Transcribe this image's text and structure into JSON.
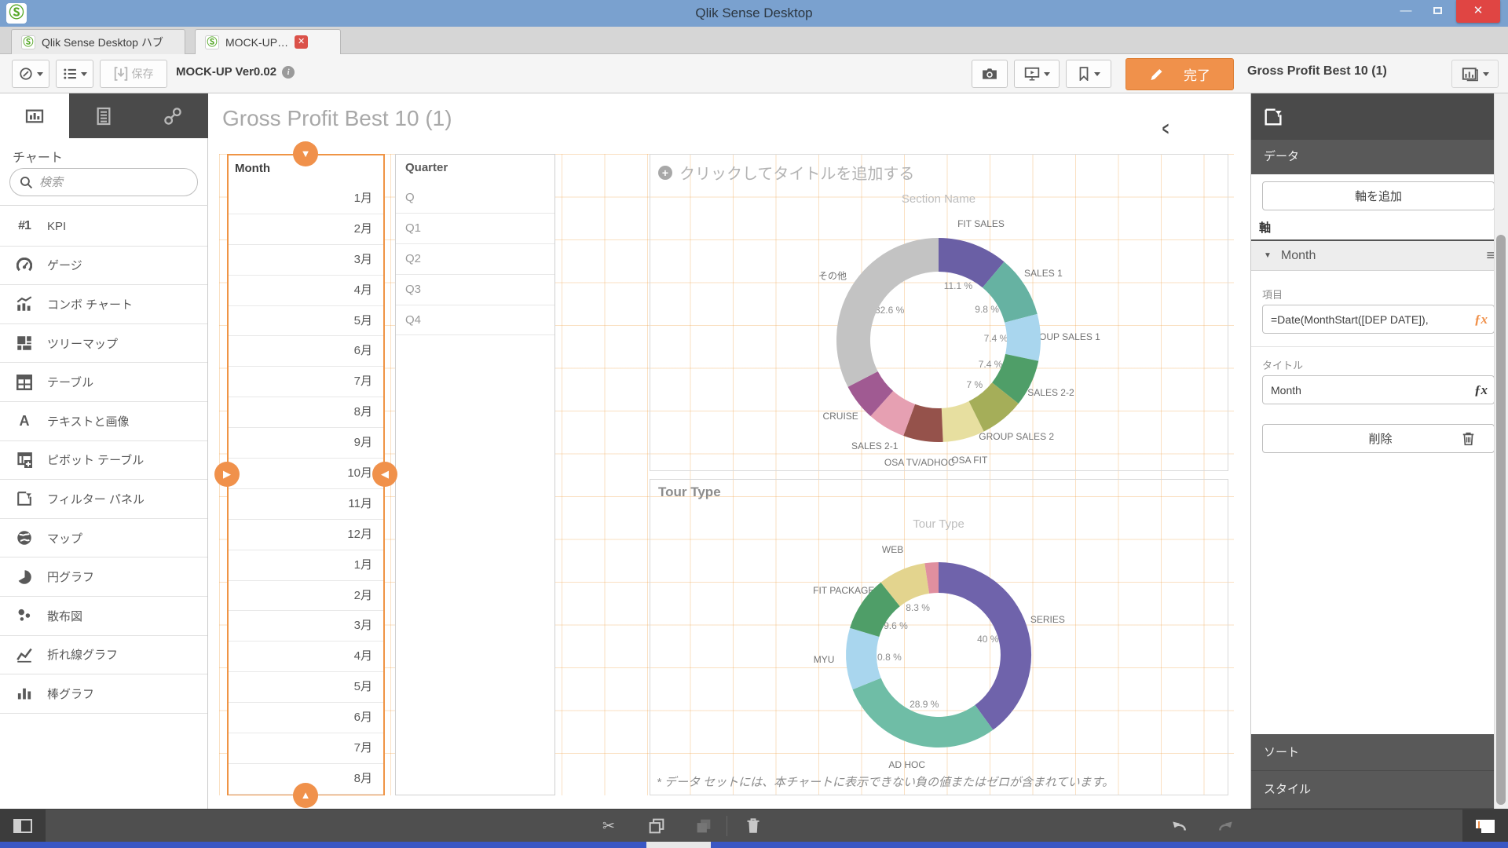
{
  "titlebar": {
    "title": "Qlik Sense Desktop"
  },
  "tabbar": {
    "tabs": [
      {
        "label": "Qlik Sense Desktop ハブ"
      },
      {
        "label": "MOCK-UP…"
      }
    ]
  },
  "toolbar": {
    "save_label": "保存",
    "app_version": "MOCK-UP Ver0.02",
    "info_glyph": "i",
    "done_label": "完了",
    "current_sheet": "Gross Profit Best 10 (1)"
  },
  "sidebar": {
    "heading": "チャート",
    "search_placeholder": "検索",
    "items": [
      {
        "icon": "kpi-icon",
        "label": "KPI"
      },
      {
        "icon": "gauge-icon",
        "label": "ゲージ"
      },
      {
        "icon": "combo-chart-icon",
        "label": "コンボ チャート"
      },
      {
        "icon": "treemap-icon",
        "label": "ツリーマップ"
      },
      {
        "icon": "table-icon",
        "label": "テーブル"
      },
      {
        "icon": "text-image-icon",
        "label": "テキストと画像"
      },
      {
        "icon": "pivot-table-icon",
        "label": "ピボット テーブル"
      },
      {
        "icon": "filter-pane-icon",
        "label": "フィルター パネル"
      },
      {
        "icon": "map-icon",
        "label": "マップ"
      },
      {
        "icon": "pie-chart-icon",
        "label": "円グラフ"
      },
      {
        "icon": "scatter-icon",
        "label": "散布図"
      },
      {
        "icon": "line-chart-icon",
        "label": "折れ線グラフ"
      },
      {
        "icon": "bar-chart-icon",
        "label": "棒グラフ"
      }
    ]
  },
  "sheet": {
    "title": "Gross Profit Best 10 (1)"
  },
  "month_filter": {
    "header": "Month",
    "values": [
      "1月",
      "2月",
      "3月",
      "4月",
      "5月",
      "6月",
      "7月",
      "8月",
      "9月",
      "10月",
      "11月",
      "12月",
      "1月",
      "2月",
      "3月",
      "4月",
      "5月",
      "6月",
      "7月",
      "8月"
    ]
  },
  "quarter_filter": {
    "header": "Quarter",
    "values": [
      "Q",
      "Q1",
      "Q2",
      "Q3",
      "Q4"
    ]
  },
  "chart_placeholder": {
    "title": "クリックしてタイトルを追加する"
  },
  "chart_data": [
    {
      "type": "pie",
      "subtype": "donut",
      "title": "Section Name",
      "legend_position": "none",
      "slices": [
        {
          "label": "FIT SALES",
          "value": 11.1,
          "percent_label": "11.1 %",
          "color": "#6a5fa5"
        },
        {
          "label": "SALES 1",
          "value": 9.8,
          "percent_label": "9.8 %",
          "color": "#66b2a2"
        },
        {
          "label": "GROUP SALES 1",
          "value": 7.4,
          "percent_label": "7.4 %",
          "color": "#a9d6ee"
        },
        {
          "label": "SALES 2-2",
          "value": 7.4,
          "percent_label": "7.4 %",
          "color": "#4f9e68"
        },
        {
          "label": "GROUP SALES 2",
          "value": 7.0,
          "percent_label": "7 %",
          "color": "#a5ae59"
        },
        {
          "label": "OSA FIT",
          "value": 6.6,
          "percent_label": null,
          "color": "#e7dfa0"
        },
        {
          "label": "OSA TV/ADHOC",
          "value": 6.3,
          "percent_label": null,
          "color": "#95524b"
        },
        {
          "label": "SALES 2-1",
          "value": 6.0,
          "percent_label": null,
          "color": "#e6a0b2"
        },
        {
          "label": "CRUISE",
          "value": 5.8,
          "percent_label": null,
          "color": "#a05a92"
        },
        {
          "label": "その他",
          "value": 32.6,
          "percent_label": "32.6 %",
          "color": "#c3c3c3"
        }
      ]
    },
    {
      "type": "pie",
      "subtype": "donut",
      "title": "Tour Type",
      "object_header": "Tour Type",
      "legend_position": "none",
      "slices": [
        {
          "label": "SERIES",
          "value": 40.0,
          "percent_label": "40 %",
          "color": "#6f63ab"
        },
        {
          "label": "AD HOC",
          "value": 28.9,
          "percent_label": "28.9 %",
          "color": "#6fbda6"
        },
        {
          "label": "MYU",
          "value": 10.8,
          "percent_label": "10.8 %",
          "color": "#a9d6ee"
        },
        {
          "label": "FIT PACKAGE",
          "value": 9.6,
          "percent_label": "9.6 %",
          "color": "#4f9e68"
        },
        {
          "label": "WEB",
          "value": 8.3,
          "percent_label": "8.3 %",
          "color": "#e3d48e"
        },
        {
          "label": "",
          "value": 2.4,
          "percent_label": null,
          "color": "#e08f9f"
        }
      ],
      "footnote": "* データ セットには、本チャートに表示できない負の値またはゼロが含まれています。"
    }
  ],
  "properties": {
    "section_data": "データ",
    "add_axis": "軸を追加",
    "axis_heading": "軸",
    "axis_name": "Month",
    "field_label": "項目",
    "field_value": "=Date(MonthStart([DEP DATE]),",
    "title_label": "タイトル",
    "title_value": "Month",
    "delete_label": "削除",
    "sort_label": "ソート",
    "style_label": "スタイル"
  },
  "accent_colors": {
    "selection_orange": "#f0914b",
    "titlebar_blue": "#7aa1cf",
    "close_red": "#e04543"
  }
}
